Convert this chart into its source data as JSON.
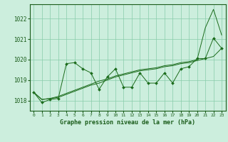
{
  "hours": [
    0,
    1,
    2,
    3,
    4,
    5,
    6,
    7,
    8,
    9,
    10,
    11,
    12,
    13,
    14,
    15,
    16,
    17,
    18,
    19,
    20,
    21,
    22,
    23
  ],
  "zigzag": [
    1018.4,
    1017.9,
    1018.05,
    1018.1,
    1019.8,
    1019.85,
    1019.55,
    1019.35,
    1018.55,
    1019.15,
    1019.55,
    1018.65,
    1018.65,
    1019.35,
    1018.85,
    1018.85,
    1019.35,
    1018.85,
    1019.55,
    1019.65,
    1020.05,
    1020.05,
    1021.05,
    1020.55
  ],
  "trend1": [
    1018.4,
    1018.05,
    1018.1,
    1018.15,
    1018.3,
    1018.45,
    1018.6,
    1018.75,
    1018.85,
    1019.0,
    1019.15,
    1019.25,
    1019.35,
    1019.45,
    1019.5,
    1019.55,
    1019.65,
    1019.7,
    1019.8,
    1019.85,
    1019.95,
    1020.05,
    1020.15,
    1020.55
  ],
  "trend2": [
    1018.4,
    1018.05,
    1018.1,
    1018.2,
    1018.35,
    1018.5,
    1018.65,
    1018.8,
    1018.95,
    1019.05,
    1019.2,
    1019.3,
    1019.4,
    1019.5,
    1019.55,
    1019.6,
    1019.7,
    1019.75,
    1019.85,
    1019.9,
    1020.0,
    1021.55,
    1022.45,
    1021.2
  ],
  "line_color": "#1a6b1a",
  "marker_color": "#1a6b1a",
  "bg_color": "#cceedd",
  "grid_color": "#88ccaa",
  "axis_color": "#1a5c1a",
  "title": "Graphe pression niveau de la mer (hPa)",
  "ylim_min": 1017.5,
  "ylim_max": 1022.7,
  "yticks": [
    1018,
    1019,
    1020,
    1021,
    1022
  ],
  "figw": 3.2,
  "figh": 2.0,
  "dpi": 100
}
